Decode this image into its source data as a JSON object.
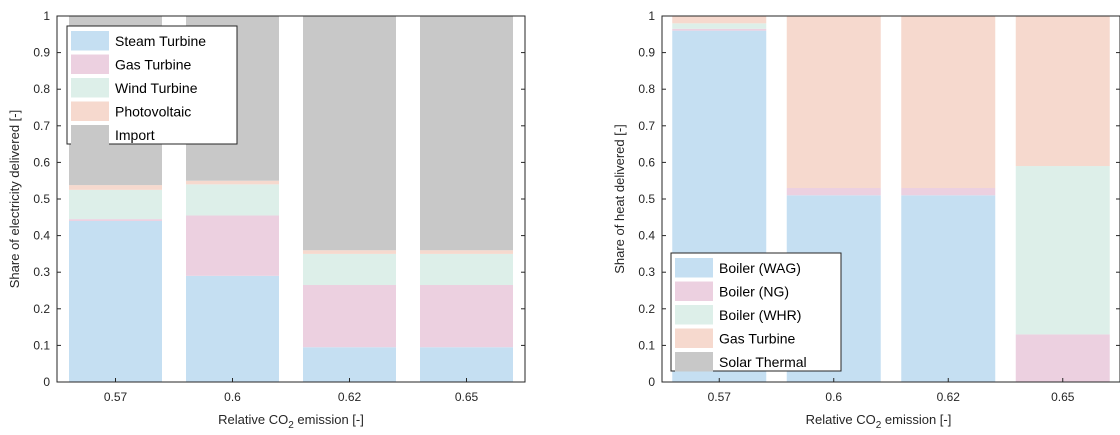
{
  "chart_data": [
    {
      "type": "bar",
      "stacked": true,
      "categories": [
        "0.57",
        "0.6",
        "0.62",
        "0.65"
      ],
      "xlabel_pre": "Relative CO",
      "xlabel_sub": "2",
      "xlabel_post": " emission [-]",
      "ylabel": "Share of electricity delivered [-]",
      "ylim": [
        0,
        1
      ],
      "yticks": [
        "0",
        "0.1",
        "0.2",
        "0.3",
        "0.4",
        "0.5",
        "0.6",
        "0.7",
        "0.8",
        "0.9",
        "1"
      ],
      "legend_position": "top-left",
      "series": [
        {
          "name": "Steam Turbine",
          "color": "#c5dff2",
          "values": [
            0.44,
            0.29,
            0.095,
            0.095
          ]
        },
        {
          "name": "Gas Turbine",
          "color": "#ecd0e0",
          "values": [
            0.005,
            0.165,
            0.17,
            0.17
          ]
        },
        {
          "name": "Wind Turbine",
          "color": "#ddefe9",
          "values": [
            0.08,
            0.085,
            0.085,
            0.085
          ]
        },
        {
          "name": "Photovoltaic",
          "color": "#f6d9ce",
          "values": [
            0.013,
            0.01,
            0.01,
            0.01
          ]
        },
        {
          "name": "Import",
          "color": "#c8c8c8",
          "values": [
            0.462,
            0.45,
            0.64,
            0.64
          ]
        }
      ]
    },
    {
      "type": "bar",
      "stacked": true,
      "categories": [
        "0.57",
        "0.6",
        "0.62",
        "0.65"
      ],
      "xlabel_pre": "Relative CO",
      "xlabel_sub": "2",
      "xlabel_post": " emission [-]",
      "ylabel": "Share of heat delivered [-]",
      "ylim": [
        0,
        1
      ],
      "yticks": [
        "0",
        "0.1",
        "0.2",
        "0.3",
        "0.4",
        "0.5",
        "0.6",
        "0.7",
        "0.8",
        "0.9",
        "1"
      ],
      "legend_position": "bottom-left",
      "series": [
        {
          "name": "Boiler (WAG)",
          "color": "#c5dff2",
          "values": [
            0.96,
            0.51,
            0.51,
            0.0
          ]
        },
        {
          "name": "Boiler (NG)",
          "color": "#ecd0e0",
          "values": [
            0.005,
            0.02,
            0.02,
            0.13
          ]
        },
        {
          "name": "Boiler (WHR)",
          "color": "#ddefe9",
          "values": [
            0.015,
            0.0,
            0.0,
            0.46
          ]
        },
        {
          "name": "Gas Turbine",
          "color": "#f6d9ce",
          "values": [
            0.02,
            0.47,
            0.47,
            0.41
          ]
        },
        {
          "name": "Solar Thermal",
          "color": "#c8c8c8",
          "values": [
            0.0,
            0.0,
            0.0,
            0.0
          ]
        }
      ]
    }
  ]
}
